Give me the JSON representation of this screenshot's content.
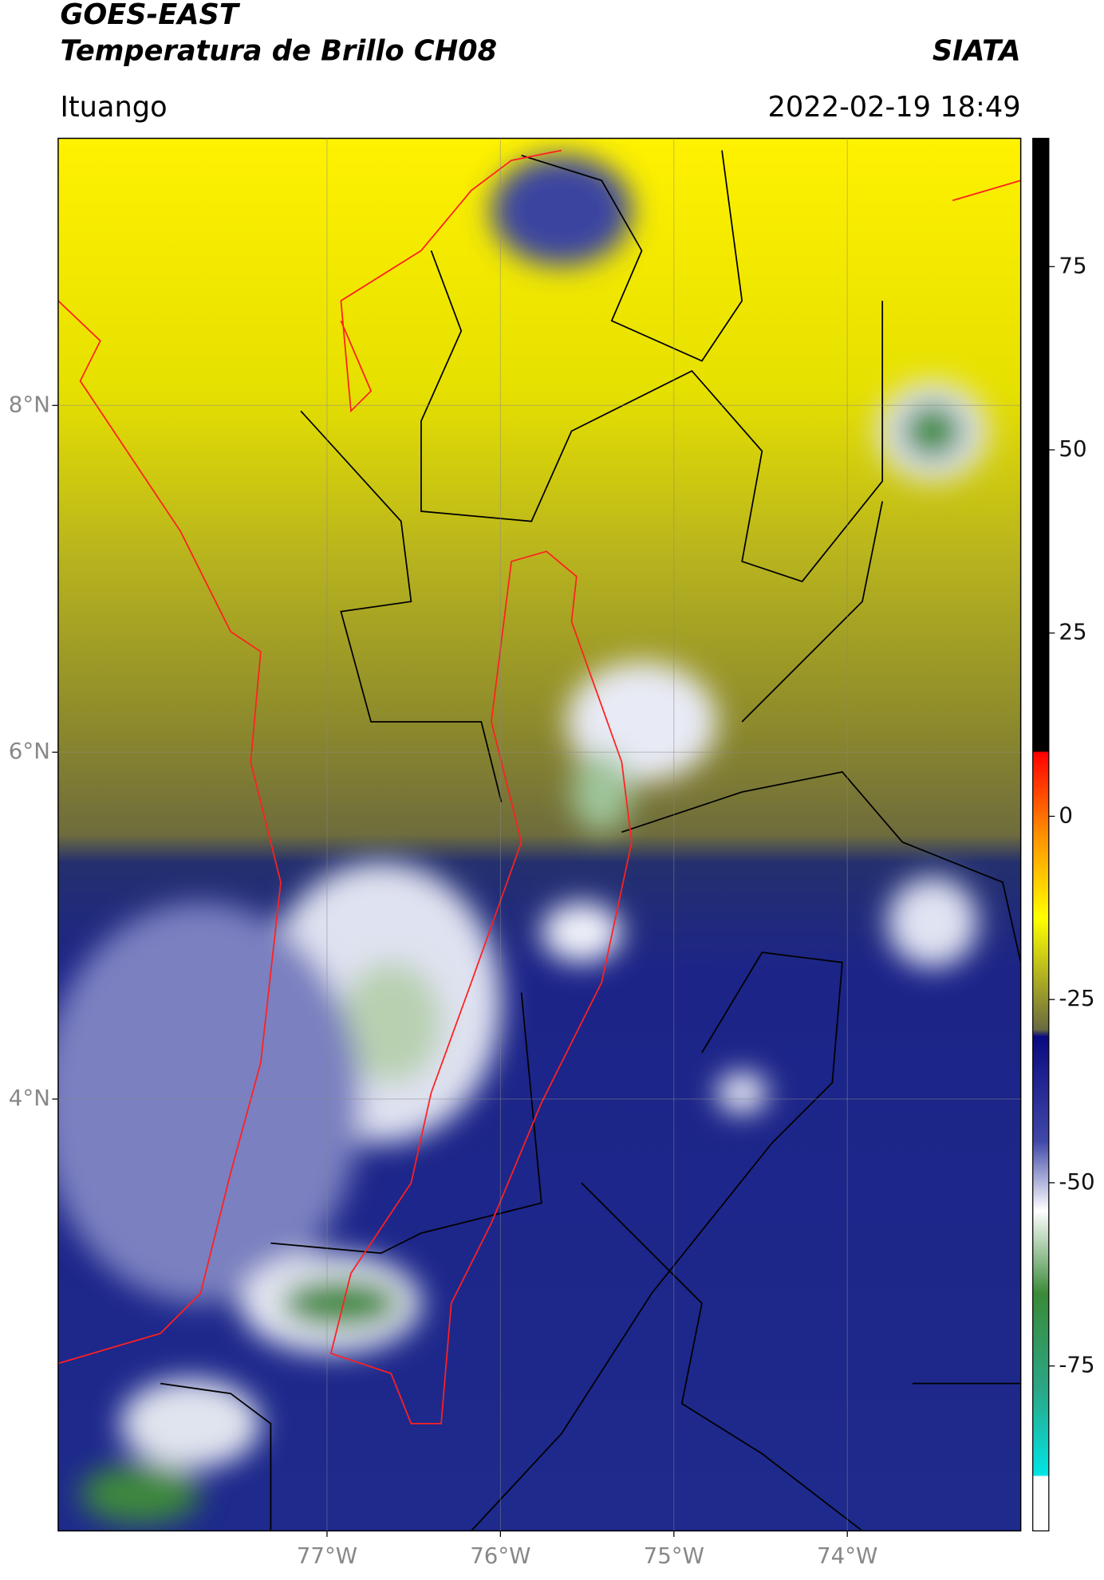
{
  "header": {
    "title": "GOES-EAST",
    "subtitle": "Temperatura de Brillo CH08",
    "brand": "SIATA",
    "location": "Ituango",
    "datetime": "2022-02-19 18:49"
  },
  "map": {
    "lat_range": [
      1.51,
      9.54
    ],
    "lon_range": [
      -78.55,
      -73.0
    ],
    "lat_ticks": [
      {
        "value": 8,
        "label": "8°N"
      },
      {
        "value": 6,
        "label": "6°N"
      },
      {
        "value": 4,
        "label": "4°N"
      }
    ],
    "lon_ticks": [
      {
        "value": -77,
        "label": "77°W"
      },
      {
        "value": -76,
        "label": "76°W"
      },
      {
        "value": -75,
        "label": "75°W"
      },
      {
        "value": -74,
        "label": "74°W"
      }
    ]
  },
  "colorbar": {
    "range": [
      -97.5,
      92.5
    ],
    "ticks": [
      75,
      50,
      25,
      0,
      -25,
      -50,
      -75
    ]
  }
}
